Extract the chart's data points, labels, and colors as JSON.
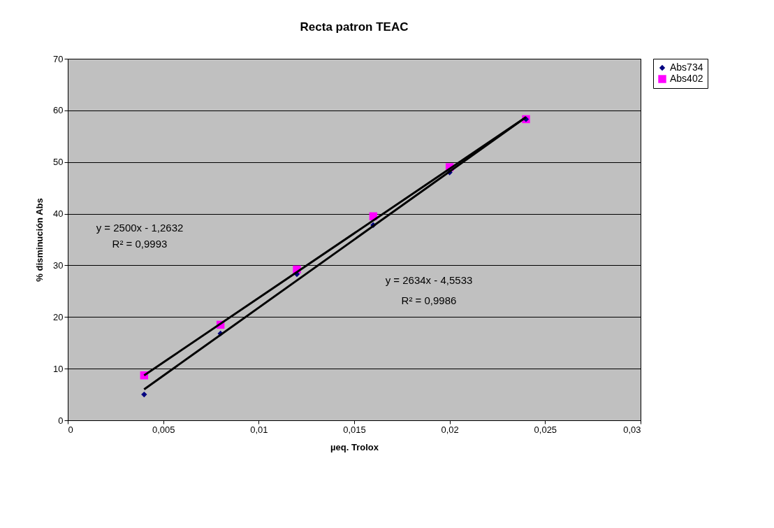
{
  "chart_data": {
    "type": "scatter",
    "title": "Recta patron TEAC",
    "xlabel": "µeq. Trolox",
    "ylabel": "% disminución Abs",
    "series": [
      {
        "name": "Abs734",
        "color": "#000080",
        "marker": "diamond",
        "x": [
          0.004,
          0.008,
          0.012,
          0.016,
          0.02,
          0.024
        ],
        "values": [
          5.0,
          16.8,
          28.3,
          37.8,
          48.0,
          58.3
        ]
      },
      {
        "name": "Abs402",
        "color": "#ff00ff",
        "marker": "square",
        "x": [
          0.004,
          0.008,
          0.012,
          0.016,
          0.02,
          0.024
        ],
        "values": [
          8.7,
          18.5,
          29.2,
          39.5,
          49.0,
          58.3
        ]
      },
      {
        "type": "line",
        "color": "#000000",
        "marker": "none",
        "line_style": "solid",
        "x": [
          0.004,
          0.024
        ],
        "values": [
          6.0,
          58.7
        ]
      },
      {
        "type": "line",
        "color": "#000000",
        "marker": "none",
        "line_style": "solid",
        "x": [
          0.004,
          0.024
        ],
        "values": [
          8.7,
          58.7
        ]
      }
    ],
    "xlim": [
      0,
      0.03
    ],
    "xticks": [
      {
        "value": 0,
        "label": "0"
      },
      {
        "value": 0.005,
        "label": "0,005"
      },
      {
        "value": 0.01,
        "label": "0,01"
      },
      {
        "value": 0.015,
        "label": "0,015"
      },
      {
        "value": 0.02,
        "label": "0,02"
      },
      {
        "value": 0.025,
        "label": "0,025"
      },
      {
        "value": 0.03,
        "label": "0,03"
      }
    ],
    "ylim": [
      0,
      70
    ],
    "yticks": [
      0,
      10,
      20,
      30,
      40,
      50,
      60,
      70
    ],
    "grid": "y",
    "legend": "right",
    "annotations": [
      "y = 2500x - 1,2632",
      "R² = 0,9993",
      "y = 2634x - 4,5533",
      "R² = 0,9986"
    ]
  }
}
